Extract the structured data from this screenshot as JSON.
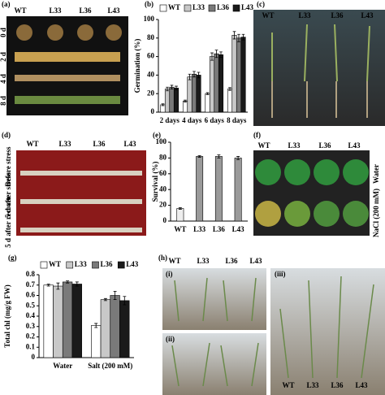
{
  "photos": {
    "a": {
      "label": "(a)",
      "columns": [
        "WT",
        "L33",
        "L36",
        "L43"
      ],
      "rows": [
        "0 d",
        "2 d",
        "4 d",
        "8 d"
      ]
    },
    "c": {
      "label": "(c)",
      "columns": [
        "WT",
        "L33",
        "L36",
        "L43"
      ]
    },
    "d": {
      "label": "(d)",
      "columns": [
        "WT",
        "L33",
        "L36",
        "L43"
      ],
      "rows": [
        "Before stress",
        "5 d after stress",
        "5 d after recover"
      ]
    },
    "f": {
      "label": "(f)",
      "columns": [
        "WT",
        "L33",
        "L36",
        "L43"
      ],
      "rows": [
        "Water",
        "NaCl (200 mM)"
      ]
    },
    "h": {
      "label": "(h)",
      "columns": [
        "WT",
        "L33",
        "L36",
        "L43"
      ],
      "subpanels": [
        "(i)",
        "(ii)",
        "(iii)"
      ],
      "bottom_columns": [
        "WT",
        "L33",
        "L36",
        "L43"
      ]
    }
  },
  "chart_data": [
    {
      "type": "bar",
      "label": "(b)",
      "y_label": "Germination (%)",
      "categories": [
        "2 days",
        "4 days",
        "6 days",
        "8 days"
      ],
      "series": [
        {
          "name": "WT",
          "color": "#ffffff",
          "values": [
            8,
            12,
            20,
            25
          ],
          "errors": [
            1,
            1,
            1,
            1.5
          ]
        },
        {
          "name": "L33",
          "color": "#c8c8c8",
          "values": [
            25,
            38,
            60,
            83
          ],
          "errors": [
            2,
            3,
            4,
            4
          ]
        },
        {
          "name": "L36",
          "color": "#7a7a7a",
          "values": [
            27,
            41,
            63,
            80
          ],
          "errors": [
            2,
            3,
            4,
            4
          ]
        },
        {
          "name": "L43",
          "color": "#1a1a1a",
          "values": [
            26,
            40,
            62,
            81
          ],
          "errors": [
            2,
            3,
            3,
            3
          ]
        }
      ],
      "ylim": [
        0,
        100
      ],
      "yticks": [
        0,
        20,
        40,
        60,
        80,
        100
      ],
      "legend": "top"
    },
    {
      "type": "bar",
      "label": "(e)",
      "y_label": "Survival (%)",
      "categories": [
        "WT",
        "L33",
        "L36",
        "L43"
      ],
      "values": [
        16,
        82,
        82,
        80
      ],
      "errors": [
        1,
        1,
        2,
        2
      ],
      "colors": [
        "#eeeeee",
        "#9a9a9a",
        "#9a9a9a",
        "#9a9a9a"
      ],
      "ylim": [
        0,
        100
      ],
      "yticks": [
        0,
        20,
        40,
        60,
        80,
        100
      ]
    },
    {
      "type": "bar",
      "label": "(g)",
      "y_label": "Total chl (mg/g FW)",
      "categories": [
        "Water",
        "Salt (200 mM)"
      ],
      "series": [
        {
          "name": "WT",
          "color": "#ffffff",
          "values": [
            0.7,
            0.31
          ],
          "errors": [
            0.01,
            0.02
          ]
        },
        {
          "name": "L33",
          "color": "#c8c8c8",
          "values": [
            0.69,
            0.56
          ],
          "errors": [
            0.03,
            0.01
          ]
        },
        {
          "name": "L36",
          "color": "#7a7a7a",
          "values": [
            0.73,
            0.6
          ],
          "errors": [
            0.01,
            0.04
          ]
        },
        {
          "name": "L43",
          "color": "#1a1a1a",
          "values": [
            0.71,
            0.55
          ],
          "errors": [
            0.02,
            0.04
          ]
        }
      ],
      "ylim": [
        0,
        0.8
      ],
      "yticks": [
        0,
        0.1,
        0.2,
        0.3,
        0.4,
        0.5,
        0.6,
        0.7,
        0.8
      ],
      "legend": "top"
    }
  ]
}
